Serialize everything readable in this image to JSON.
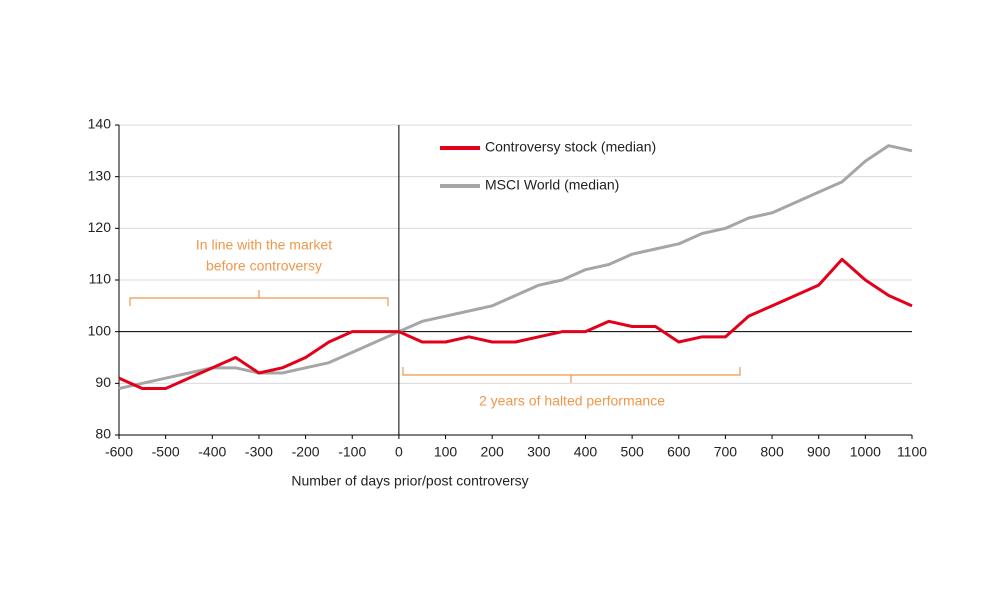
{
  "chart_data": {
    "type": "line",
    "xlabel": "Number of days prior/post controversy",
    "x": [
      -600,
      -550,
      -500,
      -450,
      -400,
      -350,
      -300,
      -250,
      -200,
      -150,
      -100,
      -50,
      0,
      50,
      100,
      150,
      200,
      250,
      300,
      350,
      400,
      450,
      500,
      550,
      600,
      650,
      700,
      750,
      800,
      850,
      900,
      950,
      1000,
      1050,
      1100
    ],
    "series": [
      {
        "name": "Controversy stock (median)",
        "color": "#e3001b",
        "values": [
          91,
          89,
          89,
          91,
          93,
          95,
          92,
          93,
          95,
          98,
          100,
          100,
          100,
          98,
          98,
          99,
          98,
          98,
          99,
          100,
          100,
          102,
          101,
          101,
          98,
          99,
          99,
          103,
          105,
          107,
          109,
          114,
          110,
          107,
          105
        ]
      },
      {
        "name": "MSCI World (median)",
        "color": "#a6a6a6",
        "values": [
          89,
          90,
          91,
          92,
          93,
          93,
          92,
          92,
          93,
          94,
          96,
          98,
          100,
          102,
          103,
          104,
          105,
          107,
          109,
          110,
          112,
          113,
          115,
          116,
          117,
          119,
          120,
          122,
          123,
          125,
          127,
          129,
          133,
          136,
          135
        ]
      }
    ],
    "xlim": [
      -600,
      1100
    ],
    "xticks": [
      -600,
      -500,
      -400,
      -300,
      -200,
      -100,
      0,
      100,
      200,
      300,
      400,
      500,
      600,
      700,
      800,
      900,
      1000,
      1100
    ],
    "ylim": [
      80,
      140
    ],
    "yticks": [
      80,
      90,
      100,
      110,
      120,
      130,
      140
    ],
    "grid": true,
    "legend": "upper center",
    "reference_lines": {
      "x": 0,
      "y": 100
    },
    "annotations": [
      "In line with the market",
      "before controversy",
      "2 years of halted performance"
    ]
  }
}
